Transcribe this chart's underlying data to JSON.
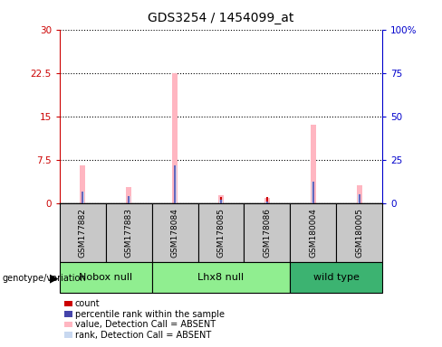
{
  "title": "GDS3254 / 1454099_at",
  "samples": [
    "GSM177882",
    "GSM177883",
    "GSM178084",
    "GSM178085",
    "GSM178086",
    "GSM180004",
    "GSM180005"
  ],
  "groups_info": [
    {
      "label": "Nobox null",
      "start": 0,
      "end": 1,
      "color": "#90EE90"
    },
    {
      "label": "Lhx8 null",
      "start": 2,
      "end": 4,
      "color": "#90EE90"
    },
    {
      "label": "wild type",
      "start": 5,
      "end": 6,
      "color": "#3CB371"
    }
  ],
  "count_values": [
    1,
    1,
    1,
    1,
    1,
    1,
    1
  ],
  "percentile_rank_values": [
    2.0,
    1.2,
    6.5,
    0.5,
    0.3,
    3.7,
    1.5
  ],
  "value_absent": [
    6.5,
    2.7,
    22.5,
    1.3,
    0.9,
    13.5,
    3.0
  ],
  "rank_absent": [
    2.0,
    1.2,
    6.5,
    0.5,
    0.3,
    3.7,
    1.5
  ],
  "ylim_left": [
    0,
    30
  ],
  "ylim_right": [
    0,
    100
  ],
  "yticks_left": [
    0,
    7.5,
    15,
    22.5,
    30
  ],
  "yticks_right": [
    0,
    25,
    50,
    75,
    100
  ],
  "ytick_labels_left": [
    "0",
    "7.5",
    "15",
    "22.5",
    "30"
  ],
  "ytick_labels_right": [
    "0",
    "25",
    "50",
    "75",
    "100%"
  ],
  "left_axis_color": "#CC0000",
  "right_axis_color": "#0000CC",
  "pink_color": "#FFB6C1",
  "lightblue_color": "#C8D8F0",
  "red_color": "#CC0000",
  "blue_color": "#6666BB",
  "legend_items": [
    {
      "color": "#CC0000",
      "label": "count"
    },
    {
      "color": "#4444AA",
      "label": "percentile rank within the sample"
    },
    {
      "color": "#FFB6C1",
      "label": "value, Detection Call = ABSENT"
    },
    {
      "color": "#C8D8F0",
      "label": "rank, Detection Call = ABSENT"
    }
  ]
}
